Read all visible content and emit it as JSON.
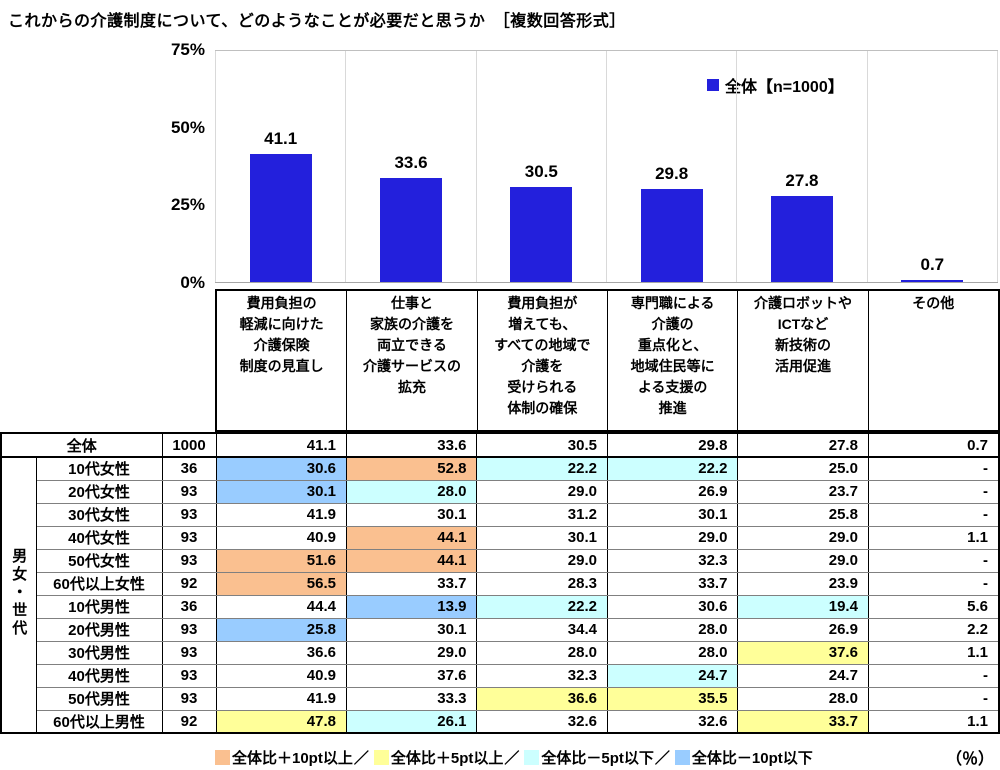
{
  "title": "これからの介護制度について、どのようなことが必要だと思うか　［複数回答形式］",
  "chart_data": {
    "type": "bar",
    "title": "これからの介護制度について、どのようなことが必要だと思うか（複数回答形式）",
    "categories": [
      "費用負担の\n軽減に向けた\n介護保険\n制度の見直し",
      "仕事と\n家族の介護を\n両立できる\n介護サービスの\n拡充",
      "費用負担が\n増えても、\nすべての地域で\n介護を\n受けられる\n体制の確保",
      "専門職による\n介護の\n重点化と、\n地域住民等に\nよる支援の\n推進",
      "介護ロボットや\nICTなど\n新技術の\n活用促進",
      "その他"
    ],
    "values": [
      41.1,
      33.6,
      30.5,
      29.8,
      27.8,
      0.7
    ],
    "ylabel": "%",
    "ylim": [
      0,
      75
    ],
    "yticks": [
      {
        "label": "75%",
        "value": 75
      },
      {
        "label": "50%",
        "value": 50
      },
      {
        "label": "25%",
        "value": 25
      },
      {
        "label": "0%",
        "value": 0
      }
    ],
    "grid": "vertical-column-separators-only",
    "legend": "全体【n=1000】",
    "legend_position": "top-right",
    "bar_color": "#2320DC"
  },
  "table": {
    "group_label": "男女・世代",
    "overall_row": {
      "label": "全体",
      "n": "1000",
      "values": [
        "41.1",
        "33.6",
        "30.5",
        "29.8",
        "27.8",
        "0.7"
      ]
    },
    "rows": [
      {
        "label": "10代女性",
        "n": "36",
        "values": [
          "30.6",
          "52.8",
          "22.2",
          "22.2",
          "25.0",
          "-"
        ],
        "marks": [
          "m10",
          "p10",
          "m5",
          "m5",
          "",
          ""
        ]
      },
      {
        "label": "20代女性",
        "n": "93",
        "values": [
          "30.1",
          "28.0",
          "29.0",
          "26.9",
          "23.7",
          "-"
        ],
        "marks": [
          "m10",
          "m5",
          "",
          "",
          "",
          ""
        ]
      },
      {
        "label": "30代女性",
        "n": "93",
        "values": [
          "41.9",
          "30.1",
          "31.2",
          "30.1",
          "25.8",
          "-"
        ],
        "marks": [
          "",
          "",
          "",
          "",
          "",
          ""
        ]
      },
      {
        "label": "40代女性",
        "n": "93",
        "values": [
          "40.9",
          "44.1",
          "30.1",
          "29.0",
          "29.0",
          "1.1"
        ],
        "marks": [
          "",
          "p10",
          "",
          "",
          "",
          ""
        ]
      },
      {
        "label": "50代女性",
        "n": "93",
        "values": [
          "51.6",
          "44.1",
          "29.0",
          "32.3",
          "29.0",
          "-"
        ],
        "marks": [
          "p10",
          "p10",
          "",
          "",
          "",
          ""
        ]
      },
      {
        "label": "60代以上女性",
        "n": "92",
        "values": [
          "56.5",
          "33.7",
          "28.3",
          "33.7",
          "23.9",
          "-"
        ],
        "marks": [
          "p10",
          "",
          "",
          "",
          "",
          ""
        ]
      },
      {
        "label": "10代男性",
        "n": "36",
        "values": [
          "44.4",
          "13.9",
          "22.2",
          "30.6",
          "19.4",
          "5.6"
        ],
        "marks": [
          "",
          "m10",
          "m5",
          "",
          "m5",
          ""
        ]
      },
      {
        "label": "20代男性",
        "n": "93",
        "values": [
          "25.8",
          "30.1",
          "34.4",
          "28.0",
          "26.9",
          "2.2"
        ],
        "marks": [
          "m10",
          "",
          "",
          "",
          "",
          ""
        ]
      },
      {
        "label": "30代男性",
        "n": "93",
        "values": [
          "36.6",
          "29.0",
          "28.0",
          "28.0",
          "37.6",
          "1.1"
        ],
        "marks": [
          "",
          "",
          "",
          "",
          "p5",
          ""
        ]
      },
      {
        "label": "40代男性",
        "n": "93",
        "values": [
          "40.9",
          "37.6",
          "32.3",
          "24.7",
          "24.7",
          "-"
        ],
        "marks": [
          "",
          "",
          "",
          "m5",
          "",
          ""
        ]
      },
      {
        "label": "50代男性",
        "n": "93",
        "values": [
          "41.9",
          "33.3",
          "36.6",
          "35.5",
          "28.0",
          "-"
        ],
        "marks": [
          "",
          "",
          "p5",
          "p5",
          "",
          ""
        ]
      },
      {
        "label": "60代以上男性",
        "n": "92",
        "values": [
          "47.8",
          "26.1",
          "32.6",
          "32.6",
          "33.7",
          "1.1"
        ],
        "marks": [
          "p5",
          "m5",
          "",
          "",
          "p5",
          ""
        ]
      }
    ]
  },
  "footer": {
    "items": [
      {
        "key": "p10",
        "label": "全体比＋10pt以上",
        "color": "#FAC090"
      },
      {
        "key": "p5",
        "label": "全体比＋5pt以上",
        "color": "#FFFF99"
      },
      {
        "key": "m5",
        "label": "全体比－5pt以下",
        "color": "#CCFFFF"
      },
      {
        "key": "m10",
        "label": "全体比－10pt以下",
        "color": "#99CCFF"
      }
    ],
    "separator": "／",
    "unit": "（％）"
  }
}
